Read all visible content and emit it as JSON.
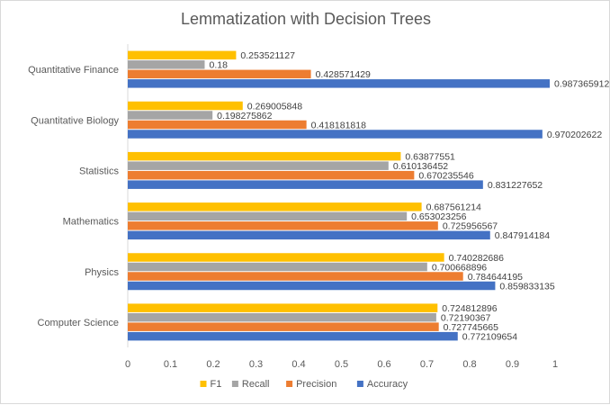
{
  "chart_data": {
    "type": "bar",
    "orientation": "horizontal",
    "title": "Lemmatization with Decision Trees",
    "categories": [
      "Quantitative Finance",
      "Quantitative Biology",
      "Statistics",
      "Mathematics",
      "Physics",
      "Computer Science"
    ],
    "series": [
      {
        "name": "F1",
        "color": "#FFC000",
        "values": [
          0.253521127,
          0.269005848,
          0.63877551,
          0.687561214,
          0.740282686,
          0.724812896
        ]
      },
      {
        "name": "Recall",
        "color": "#A5A5A5",
        "values": [
          0.18,
          0.198275862,
          0.610136452,
          0.653023256,
          0.700668896,
          0.72190367
        ]
      },
      {
        "name": "Precision",
        "color": "#ED7D31",
        "values": [
          0.428571429,
          0.418181818,
          0.670235546,
          0.725956567,
          0.784644195,
          0.727745665
        ]
      },
      {
        "name": "Accuracy",
        "color": "#4472C4",
        "values": [
          0.987365912,
          0.970202622,
          0.831227652,
          0.847914184,
          0.859833135,
          0.772109654
        ]
      }
    ],
    "value_labels": {
      "F1": [
        "0.253521127",
        "0.269005848",
        "0.63877551",
        "0.687561214",
        "0.740282686",
        "0.724812896"
      ],
      "Recall": [
        "0.18",
        "0.198275862",
        "0.610136452",
        "0.653023256",
        "0.700668896",
        "0.72190367"
      ],
      "Precision": [
        "0.428571429",
        "0.418181818",
        "0.670235546",
        "0.725956567",
        "0.784644195",
        "0.727745665"
      ],
      "Accuracy": [
        "0.987365912",
        "0.970202622",
        "0.831227652",
        "0.847914184",
        "0.859833135",
        "0.772109654"
      ]
    },
    "xlim": [
      0,
      1
    ],
    "xticks": [
      0,
      0.1,
      0.2,
      0.3,
      0.4,
      0.5,
      0.6,
      0.7,
      0.8,
      0.9,
      1
    ],
    "xtick_labels": [
      "0",
      "0.1",
      "0.2",
      "0.3",
      "0.4",
      "0.5",
      "0.6",
      "0.7",
      "0.8",
      "0.9",
      "1"
    ],
    "grid": false,
    "legend_position": "bottom",
    "legend_order": [
      "F1",
      "Recall",
      "Precision",
      "Accuracy"
    ],
    "data_labels": true
  }
}
